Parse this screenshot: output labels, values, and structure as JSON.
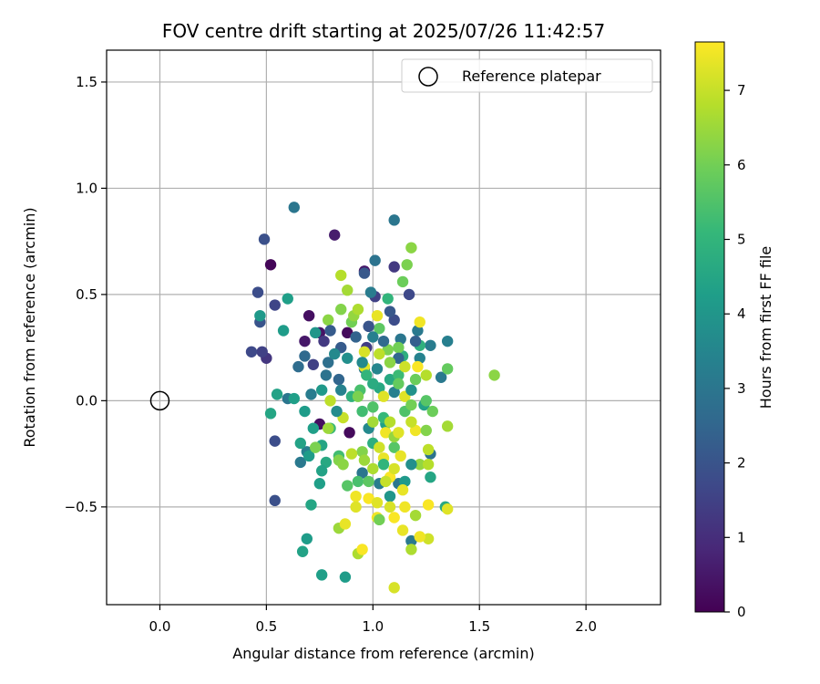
{
  "chart_data": {
    "type": "scatter",
    "title": "FOV centre drift starting at 2025/07/26 11:42:57",
    "xlabel": "Angular distance from reference (arcmin)",
    "ylabel": "Rotation from reference (arcmin)",
    "xlim": [
      -0.25,
      2.35
    ],
    "ylim": [
      -0.96,
      1.65
    ],
    "xticks": [
      0.0,
      0.5,
      1.0,
      1.5,
      2.0
    ],
    "xtick_labels": [
      "0.0",
      "0.5",
      "1.0",
      "1.5",
      "2.0"
    ],
    "yticks": [
      -0.5,
      0.0,
      0.5,
      1.0,
      1.5
    ],
    "ytick_labels": [
      "−0.5",
      "0.0",
      "0.5",
      "1.0",
      "1.5"
    ],
    "grid": true,
    "legend": {
      "placement": "top-right",
      "entries": [
        "Reference platepar"
      ]
    },
    "reference_point": {
      "x": 0.0,
      "y": 0.0,
      "marker": "open-circle",
      "label": "Reference platepar"
    },
    "colorbar": {
      "label": "Hours from first FF file",
      "colormap": "viridis",
      "range": [
        0,
        7.65
      ],
      "ticks": [
        0,
        1,
        2,
        3,
        4,
        5,
        6,
        7
      ],
      "tick_labels": [
        "0",
        "1",
        "2",
        "3",
        "4",
        "5",
        "6",
        "7"
      ]
    },
    "colormap_stops": [
      "#440154",
      "#482878",
      "#3e4989",
      "#31688e",
      "#26828e",
      "#1f9e89",
      "#35b779",
      "#6ece58",
      "#b5de2b",
      "#fde725"
    ],
    "points": [
      {
        "x": 0.52,
        "y": 0.64,
        "c": 0.1
      },
      {
        "x": 0.7,
        "y": 0.4,
        "c": 0.3
      },
      {
        "x": 0.96,
        "y": 0.61,
        "c": 0.5
      },
      {
        "x": 0.82,
        "y": 0.78,
        "c": 0.6
      },
      {
        "x": 0.75,
        "y": 0.32,
        "c": 0.4
      },
      {
        "x": 0.68,
        "y": 0.28,
        "c": 0.5
      },
      {
        "x": 0.88,
        "y": 0.32,
        "c": 0.2
      },
      {
        "x": 0.75,
        "y": -0.11,
        "c": 0.3
      },
      {
        "x": 0.89,
        "y": -0.15,
        "c": 0.2
      },
      {
        "x": 0.5,
        "y": 0.2,
        "c": 1.2
      },
      {
        "x": 0.48,
        "y": 0.23,
        "c": 1.5
      },
      {
        "x": 0.43,
        "y": 0.23,
        "c": 1.7
      },
      {
        "x": 0.46,
        "y": 0.51,
        "c": 1.8
      },
      {
        "x": 0.49,
        "y": 0.76,
        "c": 1.9
      },
      {
        "x": 0.54,
        "y": 0.45,
        "c": 1.6
      },
      {
        "x": 0.47,
        "y": 0.37,
        "c": 2.0
      },
      {
        "x": 0.54,
        "y": -0.19,
        "c": 1.8
      },
      {
        "x": 0.54,
        "y": -0.47,
        "c": 1.9
      },
      {
        "x": 0.72,
        "y": 0.17,
        "c": 1.5
      },
      {
        "x": 0.77,
        "y": 0.28,
        "c": 1.3
      },
      {
        "x": 0.97,
        "y": 0.25,
        "c": 1.4
      },
      {
        "x": 1.01,
        "y": 0.49,
        "c": 1.5
      },
      {
        "x": 1.1,
        "y": 0.38,
        "c": 1.8
      },
      {
        "x": 1.17,
        "y": 0.5,
        "c": 1.7
      },
      {
        "x": 1.1,
        "y": 0.63,
        "c": 1.3
      },
      {
        "x": 0.96,
        "y": 0.6,
        "c": 2.1
      },
      {
        "x": 0.84,
        "y": 0.1,
        "c": 2.5
      },
      {
        "x": 0.68,
        "y": 0.21,
        "c": 2.6
      },
      {
        "x": 0.65,
        "y": 0.16,
        "c": 2.7
      },
      {
        "x": 0.63,
        "y": 0.91,
        "c": 3.0
      },
      {
        "x": 1.1,
        "y": 0.85,
        "c": 3.0
      },
      {
        "x": 1.01,
        "y": 0.66,
        "c": 2.9
      },
      {
        "x": 0.99,
        "y": 0.51,
        "c": 3.2
      },
      {
        "x": 1.13,
        "y": 0.29,
        "c": 3.0
      },
      {
        "x": 1.21,
        "y": 0.33,
        "c": 3.1
      },
      {
        "x": 1.27,
        "y": 0.26,
        "c": 3.2
      },
      {
        "x": 1.35,
        "y": 0.28,
        "c": 3.3
      },
      {
        "x": 1.32,
        "y": 0.11,
        "c": 3.1
      },
      {
        "x": 1.27,
        "y": -0.25,
        "c": 2.9
      },
      {
        "x": 1.12,
        "y": -0.39,
        "c": 3.0
      },
      {
        "x": 1.03,
        "y": -0.39,
        "c": 3.2
      },
      {
        "x": 0.95,
        "y": -0.34,
        "c": 3.0
      },
      {
        "x": 0.66,
        "y": -0.29,
        "c": 3.1
      },
      {
        "x": 0.69,
        "y": -0.24,
        "c": 3.3
      },
      {
        "x": 0.71,
        "y": 0.03,
        "c": 3.2
      },
      {
        "x": 0.6,
        "y": 0.01,
        "c": 3.0
      },
      {
        "x": 0.79,
        "y": 0.18,
        "c": 2.8
      },
      {
        "x": 1.18,
        "y": -0.66,
        "c": 3.1
      },
      {
        "x": 1.22,
        "y": 0.2,
        "c": 3.4
      },
      {
        "x": 1.1,
        "y": 0.04,
        "c": 3.3
      },
      {
        "x": 0.96,
        "y": 0.15,
        "c": 3.1
      },
      {
        "x": 0.58,
        "y": 0.33,
        "c": 4.2
      },
      {
        "x": 0.6,
        "y": 0.48,
        "c": 4.3
      },
      {
        "x": 0.47,
        "y": 0.4,
        "c": 4.1
      },
      {
        "x": 0.55,
        "y": 0.03,
        "c": 4.4
      },
      {
        "x": 0.52,
        "y": -0.06,
        "c": 4.5
      },
      {
        "x": 0.63,
        "y": 0.01,
        "c": 4.3
      },
      {
        "x": 0.68,
        "y": -0.05,
        "c": 4.2
      },
      {
        "x": 0.76,
        "y": 0.05,
        "c": 4.1
      },
      {
        "x": 0.72,
        "y": -0.13,
        "c": 4.3
      },
      {
        "x": 0.66,
        "y": -0.2,
        "c": 4.4
      },
      {
        "x": 0.7,
        "y": -0.26,
        "c": 4.2
      },
      {
        "x": 0.76,
        "y": -0.21,
        "c": 4.5
      },
      {
        "x": 0.78,
        "y": -0.29,
        "c": 4.6
      },
      {
        "x": 0.76,
        "y": -0.33,
        "c": 4.4
      },
      {
        "x": 0.75,
        "y": -0.39,
        "c": 4.3
      },
      {
        "x": 0.71,
        "y": -0.49,
        "c": 4.5
      },
      {
        "x": 0.69,
        "y": -0.65,
        "c": 4.2
      },
      {
        "x": 0.67,
        "y": -0.71,
        "c": 4.4
      },
      {
        "x": 0.76,
        "y": -0.82,
        "c": 4.3
      },
      {
        "x": 0.87,
        "y": -0.83,
        "c": 4.2
      },
      {
        "x": 1.27,
        "y": -0.36,
        "c": 4.5
      },
      {
        "x": 1.34,
        "y": -0.5,
        "c": 4.6
      },
      {
        "x": 1.24,
        "y": -0.02,
        "c": 4.4
      },
      {
        "x": 1.06,
        "y": -0.11,
        "c": 4.3
      },
      {
        "x": 1.03,
        "y": 0.06,
        "c": 4.6
      },
      {
        "x": 1.14,
        "y": 0.21,
        "c": 4.8
      },
      {
        "x": 1.22,
        "y": 0.26,
        "c": 4.9
      },
      {
        "x": 1.07,
        "y": 0.48,
        "c": 5.0
      },
      {
        "x": 0.8,
        "y": -0.13,
        "c": 5.2
      },
      {
        "x": 0.84,
        "y": -0.26,
        "c": 5.3
      },
      {
        "x": 0.94,
        "y": 0.05,
        "c": 5.4
      },
      {
        "x": 1.0,
        "y": -0.03,
        "c": 5.5
      },
      {
        "x": 1.1,
        "y": -0.22,
        "c": 5.6
      },
      {
        "x": 1.35,
        "y": 0.15,
        "c": 5.8
      },
      {
        "x": 1.14,
        "y": 0.56,
        "c": 5.9
      },
      {
        "x": 1.16,
        "y": 0.64,
        "c": 6.1
      },
      {
        "x": 1.18,
        "y": 0.72,
        "c": 6.3
      },
      {
        "x": 1.03,
        "y": 0.34,
        "c": 5.7
      },
      {
        "x": 0.9,
        "y": 0.37,
        "c": 6.0
      },
      {
        "x": 0.85,
        "y": 0.43,
        "c": 6.2
      },
      {
        "x": 0.79,
        "y": 0.38,
        "c": 6.3
      },
      {
        "x": 0.91,
        "y": 0.4,
        "c": 6.4
      },
      {
        "x": 1.07,
        "y": 0.24,
        "c": 6.1
      },
      {
        "x": 1.12,
        "y": 0.25,
        "c": 6.0
      },
      {
        "x": 0.84,
        "y": -0.28,
        "c": 6.2
      },
      {
        "x": 0.86,
        "y": -0.3,
        "c": 6.3
      },
      {
        "x": 1.22,
        "y": -0.3,
        "c": 6.4
      },
      {
        "x": 0.79,
        "y": -0.13,
        "c": 6.5
      },
      {
        "x": 0.73,
        "y": -0.22,
        "c": 6.1
      },
      {
        "x": 1.57,
        "y": 0.12,
        "c": 6.3
      },
      {
        "x": 1.35,
        "y": -0.12,
        "c": 6.6
      },
      {
        "x": 1.18,
        "y": -0.7,
        "c": 6.7
      },
      {
        "x": 0.84,
        "y": -0.6,
        "c": 6.5
      },
      {
        "x": 0.85,
        "y": 0.59,
        "c": 6.8
      },
      {
        "x": 0.88,
        "y": 0.52,
        "c": 6.6
      },
      {
        "x": 0.93,
        "y": 0.43,
        "c": 6.7
      },
      {
        "x": 1.03,
        "y": 0.22,
        "c": 6.9
      },
      {
        "x": 1.25,
        "y": 0.12,
        "c": 6.8
      },
      {
        "x": 1.2,
        "y": -0.54,
        "c": 6.6
      },
      {
        "x": 0.93,
        "y": -0.72,
        "c": 6.7
      },
      {
        "x": 0.8,
        "y": 0.0,
        "c": 6.9
      },
      {
        "x": 0.86,
        "y": -0.08,
        "c": 7.0
      },
      {
        "x": 1.26,
        "y": -0.65,
        "c": 7.1
      },
      {
        "x": 1.26,
        "y": -0.3,
        "c": 6.8
      },
      {
        "x": 1.26,
        "y": -0.23,
        "c": 6.9
      },
      {
        "x": 0.96,
        "y": 0.23,
        "c": 7.2
      },
      {
        "x": 0.96,
        "y": 0.16,
        "c": 7.3
      },
      {
        "x": 1.02,
        "y": 0.4,
        "c": 7.4
      },
      {
        "x": 1.22,
        "y": 0.37,
        "c": 7.5
      },
      {
        "x": 1.21,
        "y": 0.16,
        "c": 7.6
      },
      {
        "x": 1.15,
        "y": 0.02,
        "c": 7.3
      },
      {
        "x": 1.06,
        "y": -0.15,
        "c": 7.5
      },
      {
        "x": 1.13,
        "y": -0.26,
        "c": 7.4
      },
      {
        "x": 0.98,
        "y": -0.46,
        "c": 7.6
      },
      {
        "x": 1.02,
        "y": -0.55,
        "c": 7.5
      },
      {
        "x": 1.02,
        "y": -0.48,
        "c": 7.3
      },
      {
        "x": 1.1,
        "y": -0.55,
        "c": 7.6
      },
      {
        "x": 1.15,
        "y": -0.5,
        "c": 7.5
      },
      {
        "x": 1.14,
        "y": -0.61,
        "c": 7.4
      },
      {
        "x": 1.26,
        "y": -0.49,
        "c": 7.6
      },
      {
        "x": 1.35,
        "y": -0.51,
        "c": 7.3
      },
      {
        "x": 1.1,
        "y": -0.88,
        "c": 7.2
      },
      {
        "x": 1.22,
        "y": -0.64,
        "c": 7.5
      },
      {
        "x": 0.87,
        "y": -0.58,
        "c": 7.4
      },
      {
        "x": 0.95,
        "y": -0.7,
        "c": 7.6
      },
      {
        "x": 0.92,
        "y": -0.45,
        "c": 7.5
      },
      {
        "x": 1.08,
        "y": -0.36,
        "c": 7.6
      },
      {
        "x": 1.2,
        "y": -0.14,
        "c": 7.5
      },
      {
        "x": 1.05,
        "y": -0.27,
        "c": 7.4
      },
      {
        "x": 0.92,
        "y": -0.5,
        "c": 7.3
      },
      {
        "x": 0.97,
        "y": 0.12,
        "c": 5.0
      },
      {
        "x": 1.0,
        "y": 0.08,
        "c": 4.7
      },
      {
        "x": 1.05,
        "y": -0.08,
        "c": 5.1
      },
      {
        "x": 0.9,
        "y": 0.02,
        "c": 4.9
      },
      {
        "x": 0.95,
        "y": -0.05,
        "c": 5.3
      },
      {
        "x": 1.08,
        "y": 0.1,
        "c": 4.6
      },
      {
        "x": 1.12,
        "y": 0.12,
        "c": 5.2
      },
      {
        "x": 1.0,
        "y": -0.2,
        "c": 4.8
      },
      {
        "x": 1.05,
        "y": -0.3,
        "c": 5.0
      },
      {
        "x": 0.93,
        "y": -0.38,
        "c": 5.4
      },
      {
        "x": 0.88,
        "y": 0.2,
        "c": 3.8
      },
      {
        "x": 1.15,
        "y": -0.05,
        "c": 5.5
      },
      {
        "x": 0.98,
        "y": -0.13,
        "c": 3.6
      },
      {
        "x": 1.02,
        "y": 0.15,
        "c": 3.5
      },
      {
        "x": 1.18,
        "y": 0.05,
        "c": 3.9
      },
      {
        "x": 0.92,
        "y": 0.3,
        "c": 2.4
      },
      {
        "x": 1.05,
        "y": 0.28,
        "c": 2.6
      },
      {
        "x": 0.85,
        "y": 0.25,
        "c": 2.2
      },
      {
        "x": 1.12,
        "y": 0.2,
        "c": 2.5
      },
      {
        "x": 1.2,
        "y": 0.28,
        "c": 2.3
      },
      {
        "x": 0.83,
        "y": -0.05,
        "c": 3.7
      },
      {
        "x": 1.18,
        "y": -0.3,
        "c": 3.8
      },
      {
        "x": 1.08,
        "y": -0.45,
        "c": 4.0
      },
      {
        "x": 1.15,
        "y": -0.38,
        "c": 4.1
      },
      {
        "x": 0.98,
        "y": 0.35,
        "c": 2.0
      },
      {
        "x": 1.08,
        "y": 0.42,
        "c": 2.1
      },
      {
        "x": 0.8,
        "y": 0.33,
        "c": 2.2
      },
      {
        "x": 0.95,
        "y": -0.24,
        "c": 6.2
      },
      {
        "x": 1.1,
        "y": -0.17,
        "c": 6.4
      },
      {
        "x": 1.0,
        "y": -0.32,
        "c": 6.7
      },
      {
        "x": 1.06,
        "y": -0.38,
        "c": 7.0
      },
      {
        "x": 1.1,
        "y": -0.32,
        "c": 7.2
      },
      {
        "x": 0.9,
        "y": -0.25,
        "c": 6.9
      },
      {
        "x": 1.03,
        "y": -0.22,
        "c": 7.1
      },
      {
        "x": 0.96,
        "y": -0.28,
        "c": 6.5
      },
      {
        "x": 1.14,
        "y": -0.42,
        "c": 7.4
      },
      {
        "x": 1.18,
        "y": -0.02,
        "c": 6.0
      },
      {
        "x": 1.12,
        "y": 0.08,
        "c": 5.8
      },
      {
        "x": 1.25,
        "y": 0.0,
        "c": 5.6
      },
      {
        "x": 1.2,
        "y": 0.1,
        "c": 5.9
      },
      {
        "x": 0.93,
        "y": 0.02,
        "c": 6.1
      },
      {
        "x": 1.08,
        "y": 0.18,
        "c": 6.3
      },
      {
        "x": 1.15,
        "y": 0.16,
        "c": 7.1
      },
      {
        "x": 1.05,
        "y": 0.02,
        "c": 7.3
      },
      {
        "x": 1.18,
        "y": -0.1,
        "c": 7.0
      },
      {
        "x": 1.08,
        "y": -0.1,
        "c": 6.8
      },
      {
        "x": 1.12,
        "y": -0.15,
        "c": 7.3
      },
      {
        "x": 1.0,
        "y": -0.1,
        "c": 6.6
      },
      {
        "x": 0.98,
        "y": -0.38,
        "c": 5.7
      },
      {
        "x": 0.88,
        "y": -0.4,
        "c": 5.6
      },
      {
        "x": 1.03,
        "y": -0.56,
        "c": 6.0
      },
      {
        "x": 1.08,
        "y": -0.5,
        "c": 7.2
      },
      {
        "x": 1.25,
        "y": -0.14,
        "c": 6.2
      },
      {
        "x": 1.28,
        "y": -0.05,
        "c": 5.9
      },
      {
        "x": 0.73,
        "y": 0.32,
        "c": 4.0
      },
      {
        "x": 0.82,
        "y": 0.22,
        "c": 3.6
      },
      {
        "x": 0.78,
        "y": 0.12,
        "c": 2.9
      },
      {
        "x": 0.85,
        "y": 0.05,
        "c": 3.4
      },
      {
        "x": 0.95,
        "y": 0.18,
        "c": 3.6
      },
      {
        "x": 1.0,
        "y": 0.3,
        "c": 3.3
      }
    ]
  }
}
